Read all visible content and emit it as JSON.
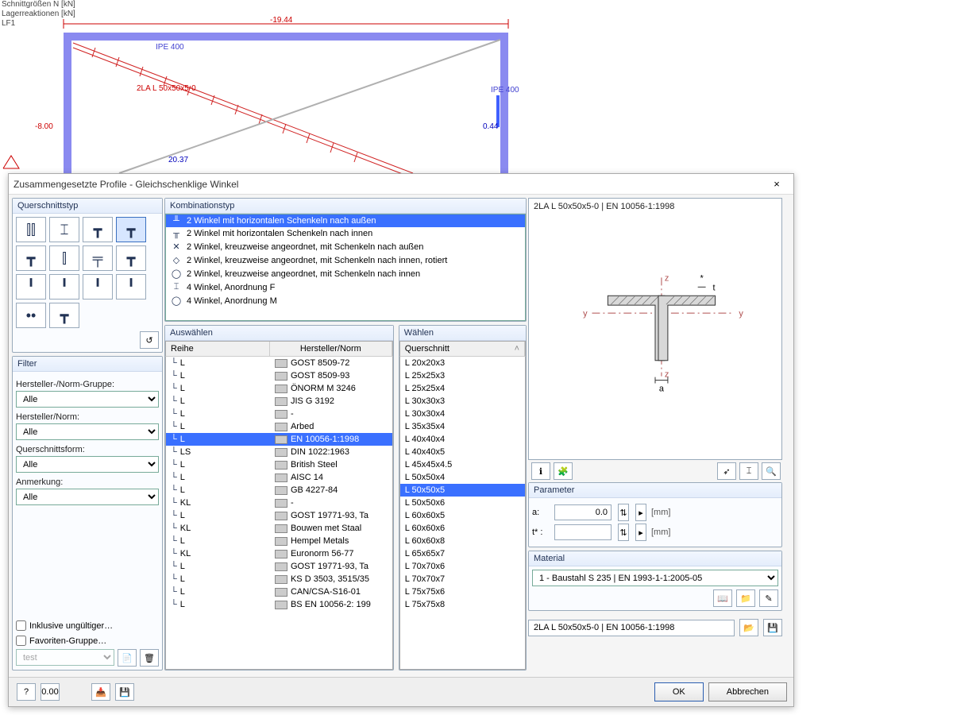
{
  "bg": {
    "labels": {
      "top_left1": "Schnittgrößen N [kN]",
      "top_left2": "Lagerreaktionen [kN]",
      "top_left3": "LF1",
      "neg1944": "-19.44",
      "neg800": "-8.00",
      "v2037": "20.37",
      "v044": "0.44",
      "ipe400a": "IPE 400",
      "ipe400b": "IPE 400",
      "diag": "2LA L 50x50x5-0"
    },
    "colors": {
      "frame": "#8a8af0",
      "diag": "#d02020",
      "grey": "#b0b0b0"
    }
  },
  "dialog": {
    "title": "Zusammengesetzte Profile - Gleichschenklige Winkel",
    "close": "×",
    "left": {
      "qs_title": "Querschnittstyp",
      "qs_icons": [
        "⫿⫿",
        "⌶",
        "┳",
        "┳",
        "┳",
        "⫿",
        "╤",
        "┳",
        "╹",
        "╹",
        "╹",
        "╹",
        "••",
        "┳"
      ],
      "qs_selected": 3,
      "filter_title": "Filter",
      "labels": {
        "herst_gruppe": "Hersteller-/Norm-Gruppe:",
        "herst_norm": "Hersteller/Norm:",
        "qsform": "Querschnittsform:",
        "anmerkung": "Anmerkung:"
      },
      "alle": "Alle",
      "chk_invalid": "Inklusive ungültiger…",
      "chk_fav": "Favoriten-Gruppe…",
      "fav_value": "test"
    },
    "mid": {
      "kombi_title": "Kombinationstyp",
      "combo": [
        "2 Winkel mit horizontalen Schenkeln nach außen",
        "2 Winkel mit horizontalen Schenkeln nach innen",
        "2 Winkel, kreuzweise angeordnet, mit Schenkeln nach außen",
        "2 Winkel, kreuzweise angeordnet, mit Schenkeln nach innen, rotiert",
        "2 Winkel, kreuzweise angeordnet, mit Schenkeln nach innen",
        "4 Winkel, Anordnung F",
        "4 Winkel, Anordnung M"
      ],
      "combo_sel": 0,
      "ausw_title": "Auswählen",
      "col_reihe": "Reihe",
      "col_herst": "Hersteller/Norm",
      "rows": [
        {
          "r": "L",
          "h": "GOST 8509-72"
        },
        {
          "r": "L",
          "h": "GOST 8509-93"
        },
        {
          "r": "L",
          "h": "ÖNORM M 3246"
        },
        {
          "r": "L",
          "h": "JIS G 3192"
        },
        {
          "r": "L",
          "h": "-"
        },
        {
          "r": "L",
          "h": "Arbed"
        },
        {
          "r": "L",
          "h": "EN 10056-1:1998"
        },
        {
          "r": "LS",
          "h": "DIN 1022:1963"
        },
        {
          "r": "L",
          "h": "British Steel"
        },
        {
          "r": "L",
          "h": "AISC 14"
        },
        {
          "r": "L",
          "h": "GB 4227-84"
        },
        {
          "r": "KL",
          "h": "-"
        },
        {
          "r": "L",
          "h": "GOST 19771-93, Ta"
        },
        {
          "r": "KL",
          "h": "Bouwen met Staal"
        },
        {
          "r": "L",
          "h": "Hempel Metals"
        },
        {
          "r": "KL",
          "h": "Euronorm 56-77"
        },
        {
          "r": "L",
          "h": "GOST 19771-93, Ta"
        },
        {
          "r": "L",
          "h": "KS D 3503, 3515/35"
        },
        {
          "r": "L",
          "h": "CAN/CSA-S16-01"
        },
        {
          "r": "L",
          "h": "BS EN 10056-2: 199"
        }
      ],
      "rows_sel": 6,
      "waehlen_title": "Wählen",
      "col_qs": "Querschnitt",
      "qs_rows": [
        "L 20x20x3",
        "L 25x25x3",
        "L 25x25x4",
        "L 30x30x3",
        "L 30x30x4",
        "L 35x35x4",
        "L 40x40x4",
        "L 40x40x5",
        "L 45x45x4.5",
        "L 50x50x4",
        "L 50x50x5",
        "L 50x50x6",
        "L 60x60x5",
        "L 60x60x6",
        "L 60x60x8",
        "L 65x65x7",
        "L 70x70x6",
        "L 70x70x7",
        "L 75x75x6",
        "L 75x75x8"
      ],
      "qs_sel": 10
    },
    "right": {
      "preview_label": "2LA L 50x50x5-0 | EN 10056-1:1998",
      "param_title": "Parameter",
      "a_label": "a:",
      "a_value": "0.0",
      "t_label": "t* :",
      "t_value": "",
      "unit": "[mm]",
      "material_title": "Material",
      "material_value": "1 - Baustahl S 235 | EN 1993-1-1:2005-05",
      "result": "2LA L 50x50x5-0 | EN 10056-1:1998"
    },
    "footer": {
      "ok": "OK",
      "cancel": "Abbrechen"
    }
  },
  "colors": {
    "sel_bg": "#3a70ff",
    "group_border": "#9ab"
  }
}
